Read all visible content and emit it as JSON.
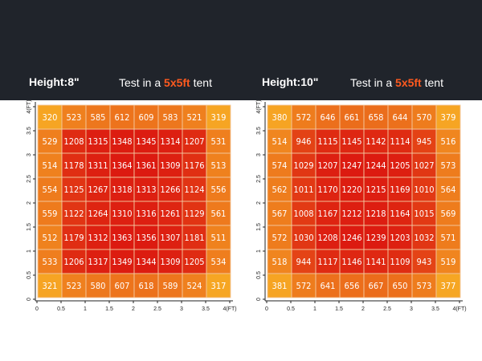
{
  "colors": {
    "background": "#20242b",
    "accent": "#ff5a1f",
    "heat_low": "#f6a623",
    "heat_high": "#dc1a10"
  },
  "chart_data": [
    {
      "type": "heatmap",
      "title": "Height:8\"",
      "subtitle_prefix": "Test in a ",
      "subtitle_accent": "5x5ft",
      "subtitle_suffix": "  tent",
      "x_ticks": [
        "0",
        "0.5",
        "1",
        "1.5",
        "2",
        "2.5",
        "3",
        "3.5",
        "4(FT)"
      ],
      "y_ticks": [
        "0",
        "0.5",
        "1",
        "1.5",
        "2",
        "2.5",
        "3",
        "3.5",
        "4(FT)"
      ],
      "xlim": [
        0,
        4
      ],
      "ylim": [
        0,
        4
      ],
      "grid": true,
      "values": [
        [
          320,
          523,
          585,
          612,
          609,
          583,
          521,
          319
        ],
        [
          529,
          1208,
          1315,
          1348,
          1345,
          1314,
          1207,
          531
        ],
        [
          514,
          1178,
          1311,
          1364,
          1361,
          1309,
          1176,
          513
        ],
        [
          554,
          1125,
          1267,
          1318,
          1313,
          1266,
          1124,
          556
        ],
        [
          559,
          1122,
          1264,
          1310,
          1316,
          1261,
          1129,
          561
        ],
        [
          512,
          1179,
          1312,
          1363,
          1356,
          1307,
          1181,
          511
        ],
        [
          533,
          1206,
          1317,
          1349,
          1344,
          1309,
          1205,
          534
        ],
        [
          321,
          523,
          580,
          607,
          618,
          589,
          524,
          317
        ]
      ]
    },
    {
      "type": "heatmap",
      "title": "Height:10\"",
      "subtitle_prefix": "Test in a ",
      "subtitle_accent": "5x5ft",
      "subtitle_suffix": "  tent",
      "x_ticks": [
        "0",
        "0.5",
        "1",
        "1.5",
        "2",
        "2.5",
        "3",
        "3.5",
        "4(FT)"
      ],
      "y_ticks": [
        "0",
        "0.5",
        "1",
        "1.5",
        "2",
        "2.5",
        "3",
        "3.5",
        "4(FT)"
      ],
      "xlim": [
        0,
        4
      ],
      "ylim": [
        0,
        4
      ],
      "grid": true,
      "values": [
        [
          380,
          572,
          646,
          661,
          658,
          644,
          570,
          379
        ],
        [
          514,
          946,
          1115,
          1145,
          1142,
          1114,
          945,
          516
        ],
        [
          574,
          1029,
          1207,
          1247,
          1244,
          1205,
          1027,
          573
        ],
        [
          562,
          1011,
          1170,
          1220,
          1215,
          1169,
          1010,
          564
        ],
        [
          567,
          1008,
          1167,
          1212,
          1218,
          1164,
          1015,
          569
        ],
        [
          572,
          1030,
          1208,
          1246,
          1239,
          1203,
          1032,
          571
        ],
        [
          518,
          944,
          1117,
          1146,
          1141,
          1109,
          943,
          519
        ],
        [
          381,
          572,
          641,
          656,
          667,
          650,
          573,
          377
        ]
      ]
    }
  ]
}
